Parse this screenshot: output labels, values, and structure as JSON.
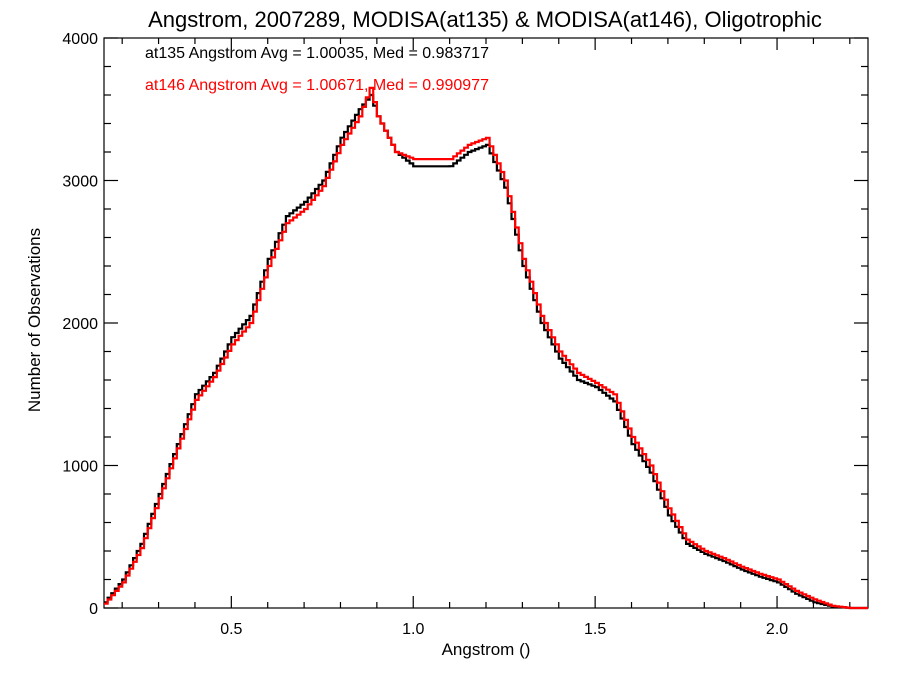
{
  "chart_data": {
    "type": "line",
    "title": "Angstrom, 2007289, MODISA(at135) & MODISA(at146), Oligotrophic",
    "xlabel": "Angstrom ()",
    "ylabel": "Number of Observations",
    "xlim": [
      0.15,
      2.25
    ],
    "ylim": [
      0,
      4000
    ],
    "xticks": [
      0.5,
      1.0,
      1.5,
      2.0
    ],
    "xtick_labels": [
      "0.5",
      "1.0",
      "1.5",
      "2.0"
    ],
    "yticks": [
      0,
      1000,
      2000,
      3000,
      4000
    ],
    "ytick_labels": [
      "0",
      "1000",
      "2000",
      "3000",
      "4000"
    ],
    "grid": false,
    "legend_placement": "top-left",
    "series": [
      {
        "color": "#000000",
        "stats_text": "at135 Angstrom Avg = 1.00035, Med = 0.983717",
        "x": [
          0.15,
          0.2,
          0.25,
          0.3,
          0.35,
          0.4,
          0.45,
          0.5,
          0.55,
          0.6,
          0.65,
          0.7,
          0.75,
          0.8,
          0.85,
          0.88,
          0.9,
          0.95,
          1.0,
          1.05,
          1.1,
          1.15,
          1.2,
          1.25,
          1.3,
          1.35,
          1.4,
          1.45,
          1.5,
          1.55,
          1.6,
          1.65,
          1.7,
          1.75,
          1.8,
          1.85,
          1.9,
          1.95,
          2.0,
          2.05,
          2.1,
          2.15,
          2.2,
          2.25
        ],
        "y": [
          40,
          200,
          450,
          800,
          1150,
          1500,
          1650,
          1900,
          2050,
          2450,
          2750,
          2850,
          3000,
          3300,
          3500,
          3600,
          3450,
          3200,
          3100,
          3100,
          3100,
          3200,
          3250,
          2950,
          2400,
          2000,
          1750,
          1600,
          1550,
          1450,
          1150,
          950,
          650,
          450,
          380,
          330,
          270,
          220,
          180,
          100,
          40,
          10,
          0,
          0
        ]
      },
      {
        "color": "#ff0000",
        "stats_text": "at146 Angstrom Avg = 1.00671, Med = 0.990977",
        "x": [
          0.15,
          0.2,
          0.25,
          0.3,
          0.35,
          0.4,
          0.45,
          0.5,
          0.55,
          0.6,
          0.65,
          0.7,
          0.75,
          0.8,
          0.85,
          0.88,
          0.9,
          0.95,
          1.0,
          1.05,
          1.1,
          1.15,
          1.2,
          1.25,
          1.3,
          1.35,
          1.4,
          1.45,
          1.5,
          1.55,
          1.6,
          1.65,
          1.7,
          1.75,
          1.8,
          1.85,
          1.9,
          1.95,
          2.0,
          2.05,
          2.1,
          2.15,
          2.2,
          2.25
        ],
        "y": [
          30,
          180,
          420,
          770,
          1120,
          1460,
          1620,
          1850,
          2000,
          2400,
          2700,
          2800,
          2960,
          3250,
          3450,
          3650,
          3450,
          3200,
          3150,
          3150,
          3150,
          3250,
          3300,
          3000,
          2450,
          2050,
          1800,
          1650,
          1580,
          1500,
          1200,
          1000,
          700,
          480,
          400,
          350,
          290,
          240,
          200,
          120,
          60,
          15,
          0,
          0
        ]
      }
    ]
  }
}
